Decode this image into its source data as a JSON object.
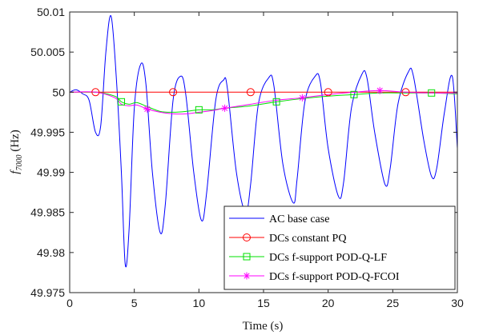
{
  "chart_data": {
    "type": "line",
    "xlabel": "Time (s)",
    "ylabel_main": "f",
    "ylabel_sub": "7000",
    "ylabel_unit": " (Hz)",
    "xlim": [
      0,
      30
    ],
    "ylim": [
      49.975,
      50.01
    ],
    "x_ticks": [
      0,
      5,
      10,
      15,
      20,
      25,
      30
    ],
    "y_ticks": [
      49.975,
      49.98,
      49.985,
      49.99,
      49.995,
      50,
      50.005,
      50.01
    ],
    "x_tick_labels": [
      "0",
      "5",
      "10",
      "15",
      "20",
      "25",
      "30"
    ],
    "y_tick_labels": [
      "49.975",
      "49.98",
      "49.985",
      "49.99",
      "49.995",
      "50",
      "50.005",
      "50.01"
    ],
    "grid": false,
    "legend_position": "bottom-right",
    "series": [
      {
        "name": "AC base case",
        "color": "#0000ff",
        "marker": "none",
        "x": [
          0,
          0.5,
          1.0,
          1.5,
          2.0,
          2.4,
          2.8,
          3.2,
          3.6,
          4.0,
          4.3,
          4.6,
          5.0,
          5.5,
          5.9,
          6.4,
          7.0,
          7.4,
          8.0,
          8.6,
          9.0,
          9.6,
          10.2,
          10.6,
          11.3,
          11.9,
          12.2,
          12.9,
          13.6,
          14.0,
          14.6,
          15.4,
          15.8,
          16.5,
          17.3,
          17.6,
          18.2,
          19.0,
          19.4,
          20.0,
          20.8,
          21.2,
          21.8,
          22.6,
          23.0,
          23.6,
          24.4,
          24.8,
          25.4,
          26.2,
          26.6,
          27.4,
          28.0,
          28.4,
          29.0,
          29.6,
          30.0
        ],
        "y": [
          50.0,
          50.0003,
          49.9998,
          49.999,
          49.995,
          49.9958,
          50.005,
          50.0095,
          50.002,
          49.99,
          49.9785,
          49.983,
          49.998,
          50.0035,
          50.001,
          49.99,
          49.9825,
          49.986,
          49.999,
          50.002,
          49.9995,
          49.99,
          49.984,
          49.9875,
          49.999,
          50.0015,
          50.0005,
          49.99,
          49.985,
          49.9885,
          49.9985,
          50.0018,
          50.0008,
          49.991,
          49.9862,
          49.9892,
          49.9988,
          50.002,
          50.0012,
          49.993,
          49.987,
          49.9888,
          49.998,
          50.0022,
          50.0018,
          49.995,
          49.9885,
          49.9905,
          49.9985,
          50.0025,
          50.002,
          49.994,
          49.9895,
          49.9905,
          49.9975,
          50.002,
          49.993
        ]
      },
      {
        "name": "DCs constant PQ",
        "color": "#ff0000",
        "marker": "circle",
        "x": [
          0,
          2,
          4,
          6,
          8,
          10,
          12,
          14,
          16,
          18,
          20,
          22,
          24,
          26,
          28,
          30
        ],
        "y": [
          50.0,
          50.0,
          50.0,
          50.0,
          50.0,
          50.0,
          50.0,
          50.0,
          50.0,
          50.0,
          50.0,
          50.0,
          50.0,
          50.0,
          50.0,
          50.0
        ],
        "marker_x": [
          2,
          8,
          14,
          20,
          26
        ]
      },
      {
        "name": "DCs f-support POD-Q-LF",
        "color": "#00e000",
        "marker": "square",
        "x": [
          0,
          2,
          3.5,
          4,
          4.6,
          5.2,
          6,
          7,
          8,
          9,
          10,
          11,
          12,
          14,
          16,
          18,
          20,
          22,
          24,
          26,
          28,
          30
        ],
        "y": [
          50.0,
          50.0,
          49.9995,
          49.9988,
          49.9985,
          49.9987,
          49.9982,
          49.9976,
          49.9975,
          49.9976,
          49.9978,
          49.9978,
          49.998,
          49.9983,
          49.9988,
          49.9992,
          49.9995,
          49.9997,
          49.9999,
          49.9999,
          49.9999,
          49.9998
        ],
        "marker_x": [
          4,
          10,
          16,
          22,
          28
        ]
      },
      {
        "name": "DCs f-support POD-Q-FCOI",
        "color": "#ff00ff",
        "marker": "star",
        "x": [
          0,
          2,
          3.5,
          4,
          4.6,
          5.2,
          6,
          7,
          8,
          9,
          10,
          11,
          12,
          14,
          16,
          18,
          20,
          22,
          24,
          26,
          28,
          30
        ],
        "y": [
          50.0,
          50.0,
          49.9993,
          49.9985,
          49.9983,
          49.9984,
          49.9979,
          49.9975,
          49.9973,
          49.9973,
          49.9975,
          49.9977,
          49.998,
          49.9985,
          49.999,
          49.9993,
          49.9997,
          50.0,
          50.0002,
          50.0,
          49.9999,
          49.9999
        ],
        "marker_x": [
          6,
          12,
          18,
          24
        ]
      }
    ]
  }
}
